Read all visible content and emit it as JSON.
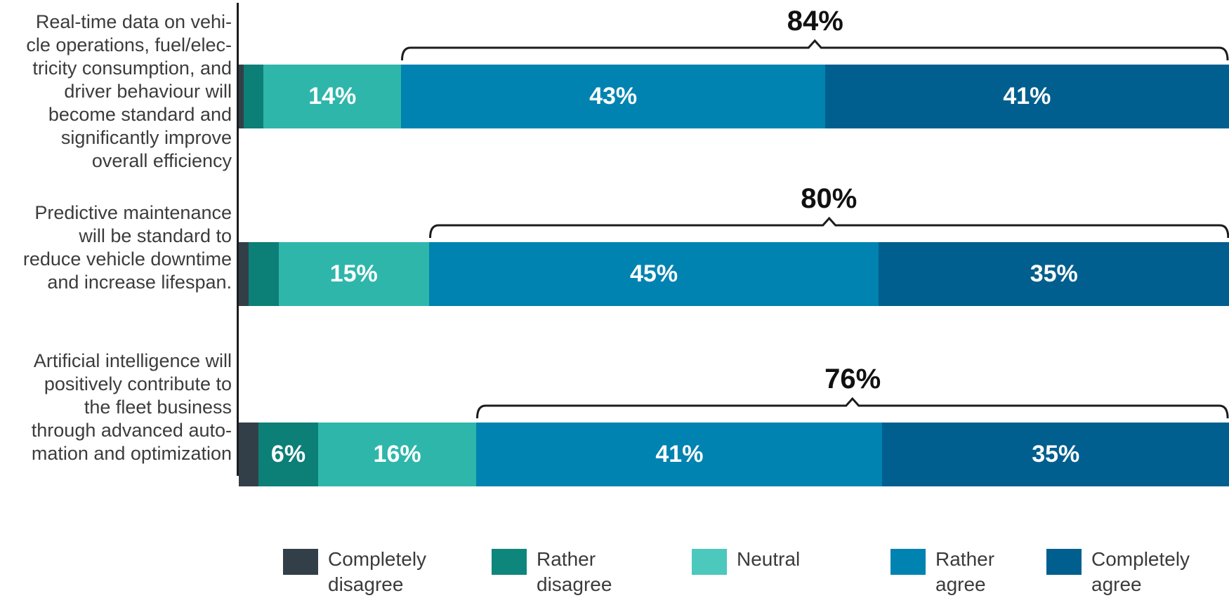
{
  "chart_data": {
    "type": "bar",
    "subtype": "horizontal-stacked-percent",
    "title": "",
    "unit": "%",
    "legend_position": "bottom",
    "grid": false,
    "statements": [
      {
        "label": "Real-time data on vehicle operations, fuel/electricity consumption, and driver behaviour will become standard and significantly improve overall efficiency",
        "label_lines": [
          "Real-time data on vehi-",
          "cle operations, fuel/elec-",
          "tricity consumption, and",
          "driver behaviour will",
          "become standard and",
          "significantly improve",
          "overall efficiency"
        ]
      },
      {
        "label": "Predictive maintenance will be standard to reduce vehicle downtime and increase lifespan.",
        "label_lines": [
          "Predictive maintenance",
          "will be standard to",
          "reduce vehicle downtime",
          "and increase lifespan."
        ]
      },
      {
        "label": "Artificial intelligence will positively contribute to the fleet business through advanced automation and optimization",
        "label_lines": [
          "Artificial intelligence will",
          "positively contribute to",
          "the fleet business",
          "through advanced auto-",
          "mation and optimization"
        ]
      }
    ],
    "options": [
      {
        "name": "Completely disagree",
        "legend_lines": [
          "Completely",
          "disagree"
        ],
        "color": "#333f48",
        "legend_color": "#333f48"
      },
      {
        "name": "Rather disagree",
        "legend_lines": [
          "Rather",
          "disagree"
        ],
        "color": "#0c7f77",
        "legend_color": "#0f867c"
      },
      {
        "name": "Neutral",
        "legend_lines": [
          "Neutral"
        ],
        "color": "#2fb6ab",
        "legend_color": "#4cc8bd"
      },
      {
        "name": "Rather agree",
        "legend_lines": [
          "Rather",
          "agree"
        ],
        "color": "#0083b0",
        "legend_color": "#0083b0"
      },
      {
        "name": "Completely agree",
        "legend_lines": [
          "Completely",
          "agree"
        ],
        "color": "#005f8e",
        "legend_color": "#005f8e"
      }
    ],
    "series": [
      {
        "name": "Completely disagree",
        "values": [
          0.5,
          1,
          2
        ]
      },
      {
        "name": "Rather disagree",
        "values": [
          2,
          3,
          6
        ]
      },
      {
        "name": "Neutral",
        "values": [
          14,
          15,
          16
        ]
      },
      {
        "name": "Rather agree",
        "values": [
          43,
          45,
          41
        ]
      },
      {
        "name": "Completely agree",
        "values": [
          41,
          35,
          35
        ]
      }
    ],
    "values": [
      [
        0.5,
        2,
        14,
        43,
        41
      ],
      [
        1,
        3,
        15,
        45,
        35
      ],
      [
        2,
        6,
        16,
        41,
        35
      ]
    ],
    "value_labels": [
      [
        "",
        "",
        "14%",
        "43%",
        "41%"
      ],
      [
        "",
        "",
        "15%",
        "45%",
        "35%"
      ],
      [
        "",
        "6%",
        "16%",
        "41%",
        "35%"
      ]
    ],
    "brackets": {
      "spans_options": [
        "Rather agree",
        "Completely agree"
      ],
      "labels": [
        "84%",
        "80%",
        "76%"
      ],
      "color": "#1c1c1c"
    }
  }
}
